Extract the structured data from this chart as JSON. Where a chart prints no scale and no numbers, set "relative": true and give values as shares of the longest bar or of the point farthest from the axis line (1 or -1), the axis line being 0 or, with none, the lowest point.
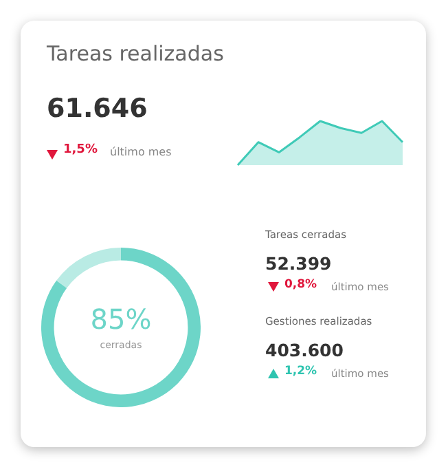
{
  "chart_data": [
    {
      "type": "area",
      "title": "Tareas realizadas",
      "subtitle": "61.646",
      "annotations": [
        "1,5%",
        "último mes"
      ],
      "relative": true,
      "tick_labels": false,
      "legend": false,
      "categories": [
        null,
        null,
        null,
        null,
        null,
        null,
        null,
        null,
        null
      ],
      "series": [
        {
          "color": "#3fcab7",
          "values": [
            0,
            0.52,
            0.29,
            0.63,
            1,
            0.84,
            0.73,
            1,
            0.52
          ]
        }
      ]
    },
    {
      "type": "donut",
      "categories": [
        "cerradas",
        null
      ],
      "values": [
        85,
        15
      ],
      "colors": [
        "#6dd5c8",
        "#b9ebe4"
      ],
      "annotations": [
        "85%"
      ],
      "legend": false
    },
    {
      "type": "other",
      "annotations": [
        "Tareas cerradas",
        "52.399",
        "0,8%",
        "último mes",
        "Gestiones realizadas",
        "403.600",
        "1,2%",
        "último mes"
      ]
    }
  ]
}
